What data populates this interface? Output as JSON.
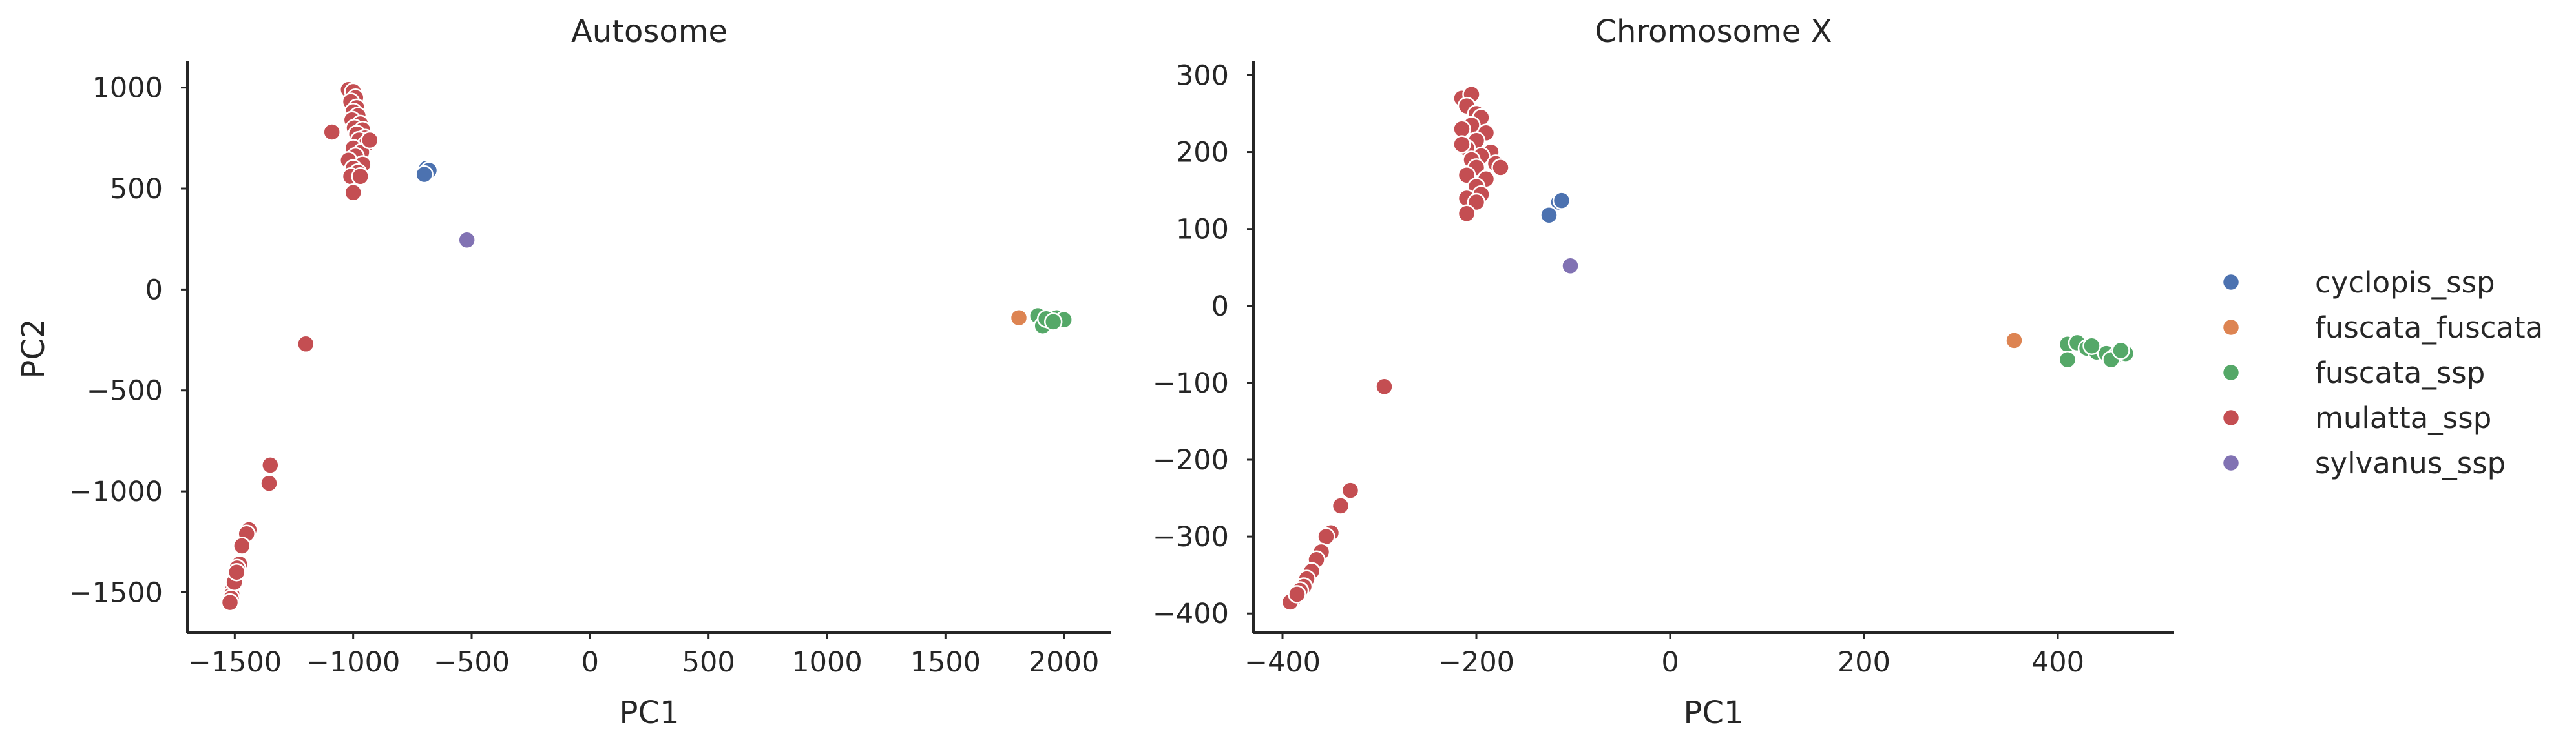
{
  "colors": {
    "cyclopis_ssp": "#4c72b0",
    "fuscata_fuscata": "#dd8452",
    "fuscata_ssp": "#55a868",
    "mulatta_ssp": "#c44e52",
    "sylvanus_ssp": "#8172b3"
  },
  "legend": {
    "entries": [
      "cyclopis_ssp",
      "fuscata_fuscata",
      "fuscata_ssp",
      "mulatta_ssp",
      "sylvanus_ssp"
    ],
    "placement": "right"
  },
  "chart_data": [
    {
      "type": "scatter",
      "title": "Autosome",
      "xlabel": "PC1",
      "ylabel": "PC2",
      "xlim": [
        -1700,
        2200
      ],
      "ylim": [
        -1700,
        1130
      ],
      "xticks": [
        -1500,
        -1000,
        -500,
        0,
        500,
        1000,
        1500,
        2000
      ],
      "xtick_labels": [
        "−1500",
        "−1000",
        "−500",
        "0",
        "500",
        "1000",
        "1500",
        "2000"
      ],
      "yticks": [
        -1500,
        -1000,
        -500,
        0,
        500,
        1000
      ],
      "ytick_labels": [
        "−1500",
        "−1000",
        "−500",
        "0",
        "500",
        "1000"
      ],
      "grid": false,
      "series": [
        {
          "name": "mulatta_ssp",
          "points": [
            [
              -1020,
              990
            ],
            [
              -1000,
              980
            ],
            [
              -990,
              950
            ],
            [
              -1010,
              930
            ],
            [
              -985,
              900
            ],
            [
              -1000,
              880
            ],
            [
              -980,
              860
            ],
            [
              -1005,
              840
            ],
            [
              -970,
              820
            ],
            [
              -995,
              800
            ],
            [
              -960,
              790
            ],
            [
              -985,
              770
            ],
            [
              -950,
              750
            ],
            [
              -1090,
              780
            ],
            [
              -975,
              740
            ],
            [
              -945,
              720
            ],
            [
              -1000,
              700
            ],
            [
              -965,
              680
            ],
            [
              -930,
              740
            ],
            [
              -990,
              660
            ],
            [
              -1020,
              640
            ],
            [
              -960,
              620
            ],
            [
              -1000,
              600
            ],
            [
              -980,
              580
            ],
            [
              -1010,
              560
            ],
            [
              -970,
              560
            ],
            [
              -1000,
              480
            ],
            [
              -1200,
              -270
            ],
            [
              -1350,
              -870
            ],
            [
              -1355,
              -960
            ],
            [
              -1440,
              -1190
            ],
            [
              -1450,
              -1210
            ],
            [
              -1470,
              -1270
            ],
            [
              -1480,
              -1360
            ],
            [
              -1490,
              -1380
            ],
            [
              -1495,
              -1410
            ],
            [
              -1500,
              -1440
            ],
            [
              -1505,
              -1470
            ],
            [
              -1510,
              -1490
            ],
            [
              -1512,
              -1510
            ],
            [
              -1515,
              -1530
            ],
            [
              -1520,
              -1550
            ],
            [
              -1502,
              -1450
            ],
            [
              -1492,
              -1400
            ]
          ]
        },
        {
          "name": "cyclopis_ssp",
          "points": [
            [
              -690,
              600
            ],
            [
              -680,
              590
            ],
            [
              -700,
              570
            ]
          ]
        },
        {
          "name": "sylvanus_ssp",
          "points": [
            [
              -520,
              245
            ]
          ]
        },
        {
          "name": "fuscata_fuscata",
          "points": [
            [
              1810,
              -140
            ]
          ]
        },
        {
          "name": "fuscata_ssp",
          "points": [
            [
              1890,
              -130
            ],
            [
              1910,
              -180
            ],
            [
              1940,
              -150
            ],
            [
              1970,
              -140
            ],
            [
              2000,
              -150
            ],
            [
              1925,
              -145
            ],
            [
              1955,
              -160
            ]
          ]
        }
      ]
    },
    {
      "type": "scatter",
      "title": "Chromosome X",
      "xlabel": "PC1",
      "ylabel": "",
      "xlim": [
        -430,
        520
      ],
      "ylim": [
        -425,
        318
      ],
      "xticks": [
        -400,
        -200,
        0,
        200,
        400
      ],
      "xtick_labels": [
        "−400",
        "−200",
        "0",
        "200",
        "400"
      ],
      "yticks": [
        -400,
        -300,
        -200,
        -100,
        0,
        100,
        200,
        300
      ],
      "ytick_labels": [
        "−400",
        "−300",
        "−200",
        "−100",
        "0",
        "100",
        "200",
        "300"
      ],
      "grid": false,
      "series": [
        {
          "name": "mulatta_ssp",
          "points": [
            [
              -215,
              270
            ],
            [
              -205,
              275
            ],
            [
              -210,
              260
            ],
            [
              -200,
              250
            ],
            [
              -195,
              245
            ],
            [
              -205,
              235
            ],
            [
              -215,
              230
            ],
            [
              -190,
              225
            ],
            [
              -200,
              215
            ],
            [
              -210,
              205
            ],
            [
              -185,
              200
            ],
            [
              -195,
              195
            ],
            [
              -205,
              190
            ],
            [
              -180,
              185
            ],
            [
              -200,
              180
            ],
            [
              -210,
              170
            ],
            [
              -190,
              165
            ],
            [
              -200,
              155
            ],
            [
              -195,
              145
            ],
            [
              -210,
              140
            ],
            [
              -200,
              135
            ],
            [
              -210,
              120
            ],
            [
              -175,
              180
            ],
            [
              -215,
              210
            ],
            [
              -295,
              -105
            ],
            [
              -330,
              -240
            ],
            [
              -340,
              -260
            ],
            [
              -350,
              -295
            ],
            [
              -355,
              -300
            ],
            [
              -360,
              -320
            ],
            [
              -365,
              -330
            ],
            [
              -370,
              -345
            ],
            [
              -375,
              -355
            ],
            [
              -378,
              -365
            ],
            [
              -382,
              -370
            ],
            [
              -388,
              -380
            ],
            [
              -392,
              -385
            ],
            [
              -385,
              -375
            ]
          ]
        },
        {
          "name": "cyclopis_ssp",
          "points": [
            [
              -115,
              135
            ],
            [
              -112,
              137
            ],
            [
              -125,
              118
            ]
          ]
        },
        {
          "name": "sylvanus_ssp",
          "points": [
            [
              -103,
              52
            ]
          ]
        },
        {
          "name": "fuscata_fuscata",
          "points": [
            [
              355,
              -45
            ]
          ]
        },
        {
          "name": "fuscata_ssp",
          "points": [
            [
              410,
              -50
            ],
            [
              420,
              -48
            ],
            [
              430,
              -55
            ],
            [
              440,
              -60
            ],
            [
              450,
              -62
            ],
            [
              460,
              -65
            ],
            [
              470,
              -62
            ],
            [
              455,
              -70
            ],
            [
              410,
              -70
            ],
            [
              435,
              -52
            ],
            [
              465,
              -58
            ]
          ]
        }
      ]
    }
  ]
}
